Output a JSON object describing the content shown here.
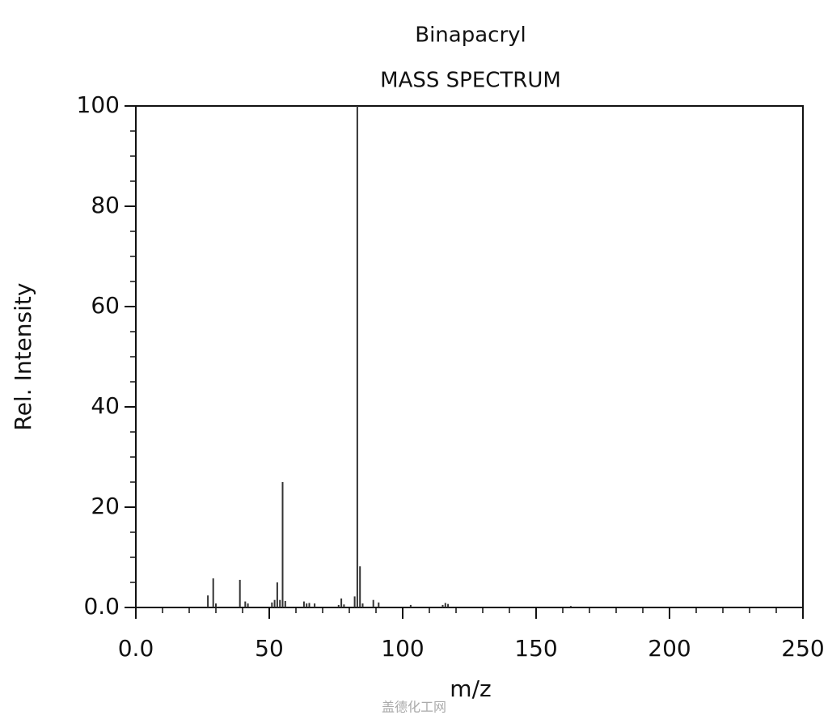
{
  "chart_data": {
    "type": "bar",
    "title": "Binapacryl",
    "subtitle": "MASS SPECTRUM",
    "x_label": "m/z",
    "y_label": "Rel. Intensity",
    "x": [
      27,
      29,
      30,
      39,
      41,
      42,
      51,
      52,
      53,
      54,
      55,
      56,
      63,
      64,
      65,
      67,
      76,
      77,
      78,
      82,
      83,
      84,
      85,
      89,
      91,
      103,
      115,
      116,
      117,
      163
    ],
    "values": [
      2.4,
      5.8,
      0.8,
      5.5,
      1.2,
      0.8,
      1.0,
      1.5,
      5.0,
      1.5,
      25,
      1.3,
      1.2,
      0.8,
      0.9,
      0.8,
      0.5,
      1.8,
      0.6,
      2.2,
      100,
      8.2,
      0.8,
      1.5,
      1.0,
      0.5,
      0.5,
      0.9,
      0.7,
      0.3
    ],
    "color": "#333333",
    "xlim": [
      0,
      250
    ],
    "ylim": [
      0,
      100
    ],
    "xticks": [
      {
        "value": 0,
        "label": "0.0"
      },
      50,
      100,
      150,
      200,
      250
    ],
    "yticks": [
      {
        "value": 0,
        "label": "0.0"
      },
      20,
      40,
      60,
      80,
      100
    ],
    "xminorticks": [
      10,
      20,
      30,
      40,
      60,
      70,
      80,
      90,
      110,
      120,
      130,
      140,
      160,
      170,
      180,
      190,
      210,
      220,
      230,
      240
    ],
    "yminorticks": [
      5,
      10,
      15,
      25,
      30,
      35,
      45,
      50,
      55,
      65,
      70,
      75,
      85,
      90,
      95
    ],
    "watermark": "盖德化工网"
  }
}
